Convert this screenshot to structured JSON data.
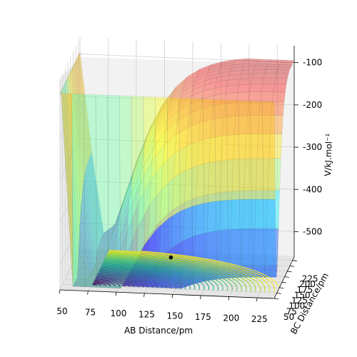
{
  "chart_data": {
    "type": "surface",
    "xlabel": "AB Distance/pm",
    "ylabel": "BC Distance/pm",
    "zlabel": "V/kJ.mol⁻¹",
    "x_ticks": [
      50,
      75,
      100,
      125,
      150,
      175,
      200,
      225
    ],
    "y_ticks": [
      50,
      75,
      100,
      125,
      150,
      175,
      200,
      225
    ],
    "z_ticks": [
      -100,
      -200,
      -300,
      -400,
      -500
    ],
    "x_range": [
      50,
      240
    ],
    "y_range": [
      50,
      240
    ],
    "z_range": [
      -560,
      -60
    ],
    "surface_colormap": "jet",
    "contour_colormap": "viridis",
    "colors": {
      "pane": "#f2f2f2",
      "pane_side": "#e9e9e9",
      "grid": "#d0d0d0",
      "marker": "#000000"
    },
    "marked_point": {
      "x": 140,
      "y": 140,
      "z": -520
    },
    "contour_levels": 40
  }
}
